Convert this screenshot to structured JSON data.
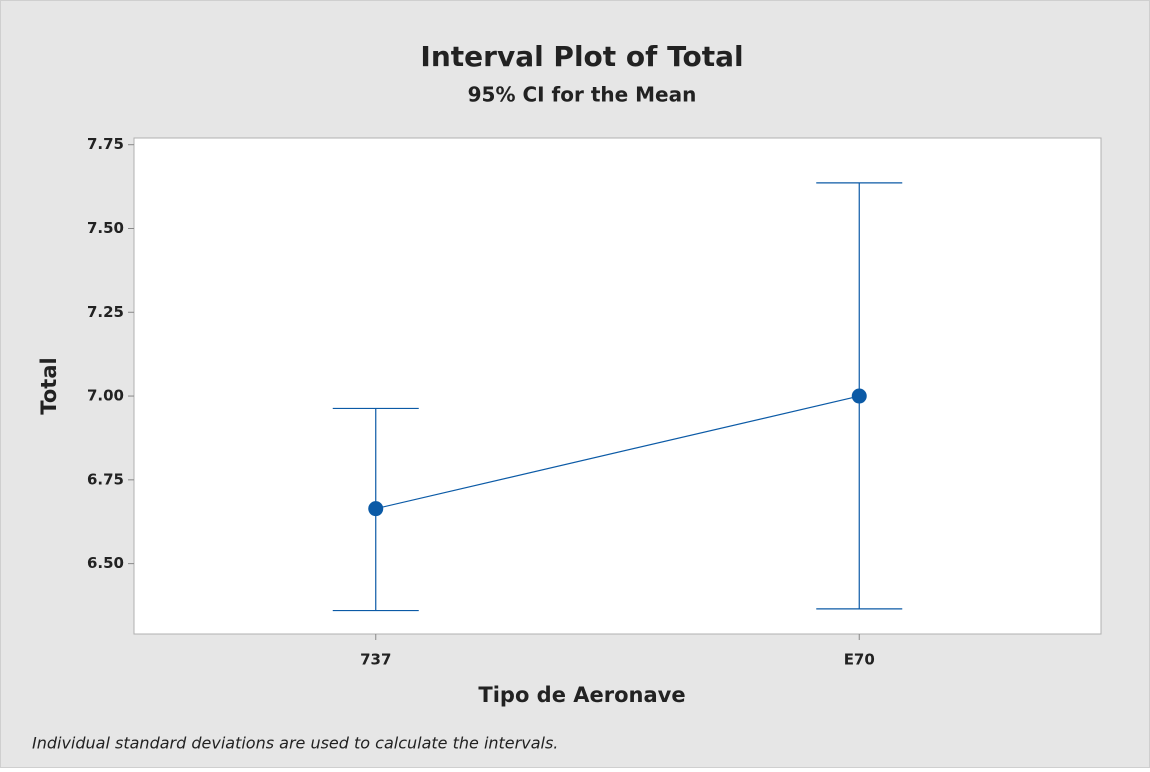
{
  "chart_data": {
    "type": "interval",
    "title": "Interval Plot of Total",
    "subtitle": "95% CI for the Mean",
    "xlabel": "Tipo de Aeronave",
    "ylabel": "Total",
    "footnote": "Individual standard deviations are used to calculate the intervals.",
    "categories": [
      "737",
      "E70"
    ],
    "values": [
      6.664,
      7.0
    ],
    "lower": [
      6.36,
      6.365
    ],
    "upper": [
      6.963,
      7.636
    ],
    "color": "#0b5aa6",
    "ylim": [
      6.29,
      7.77
    ],
    "yticks": [
      {
        "value": 6.5,
        "label": "6.50"
      },
      {
        "value": 6.75,
        "label": "6.75"
      },
      {
        "value": 7.0,
        "label": "7.00"
      },
      {
        "value": 7.25,
        "label": "7.25"
      },
      {
        "value": 7.5,
        "label": "7.50"
      },
      {
        "value": 7.75,
        "label": "7.75"
      }
    ]
  }
}
